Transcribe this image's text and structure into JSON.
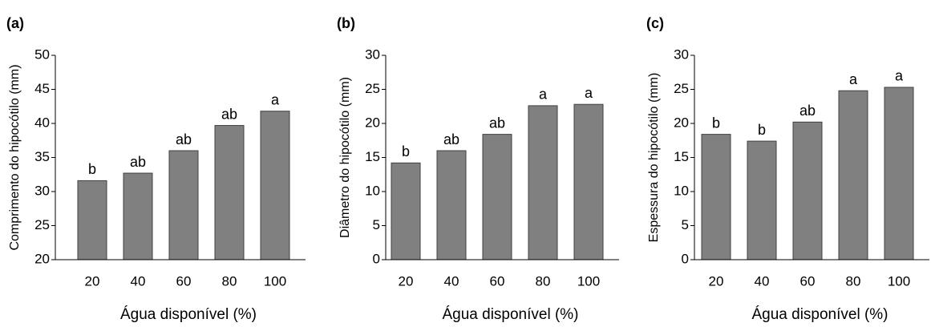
{
  "chart_data": [
    {
      "type": "bar",
      "panel": "(a)",
      "ylabel": "Comprimento do hipocótilo (mm)",
      "xlabel": "Água disponível (%)",
      "categories": [
        "20",
        "40",
        "60",
        "80",
        "100"
      ],
      "values": [
        31.6,
        32.7,
        36.0,
        39.7,
        41.8
      ],
      "letters": [
        "b",
        "ab",
        "ab",
        "ab",
        "a"
      ],
      "color": "#808080",
      "ylim": [
        20,
        50
      ],
      "yticks": [
        20,
        25,
        30,
        35,
        40,
        45,
        50
      ]
    },
    {
      "type": "bar",
      "panel": "(b)",
      "ylabel": "Diâmetro do hipocótilo (mm)",
      "xlabel": "Água disponível (%)",
      "categories": [
        "20",
        "40",
        "60",
        "80",
        "100"
      ],
      "values": [
        14.2,
        16.0,
        18.4,
        22.6,
        22.8
      ],
      "letters": [
        "b",
        "ab",
        "ab",
        "a",
        "a"
      ],
      "color": "#808080",
      "ylim": [
        0,
        30
      ],
      "yticks": [
        0,
        5,
        10,
        15,
        20,
        25,
        30
      ]
    },
    {
      "type": "bar",
      "panel": "(c)",
      "ylabel": "Espessura do hipocótilo (mm)",
      "xlabel": "Água disponível (%)",
      "categories": [
        "20",
        "40",
        "60",
        "80",
        "100"
      ],
      "values": [
        18.4,
        17.4,
        20.2,
        24.8,
        25.3
      ],
      "letters": [
        "b",
        "b",
        "ab",
        "a",
        "a"
      ],
      "color": "#808080",
      "ylim": [
        0,
        30
      ],
      "yticks": [
        0,
        5,
        10,
        15,
        20,
        25,
        30
      ]
    }
  ]
}
